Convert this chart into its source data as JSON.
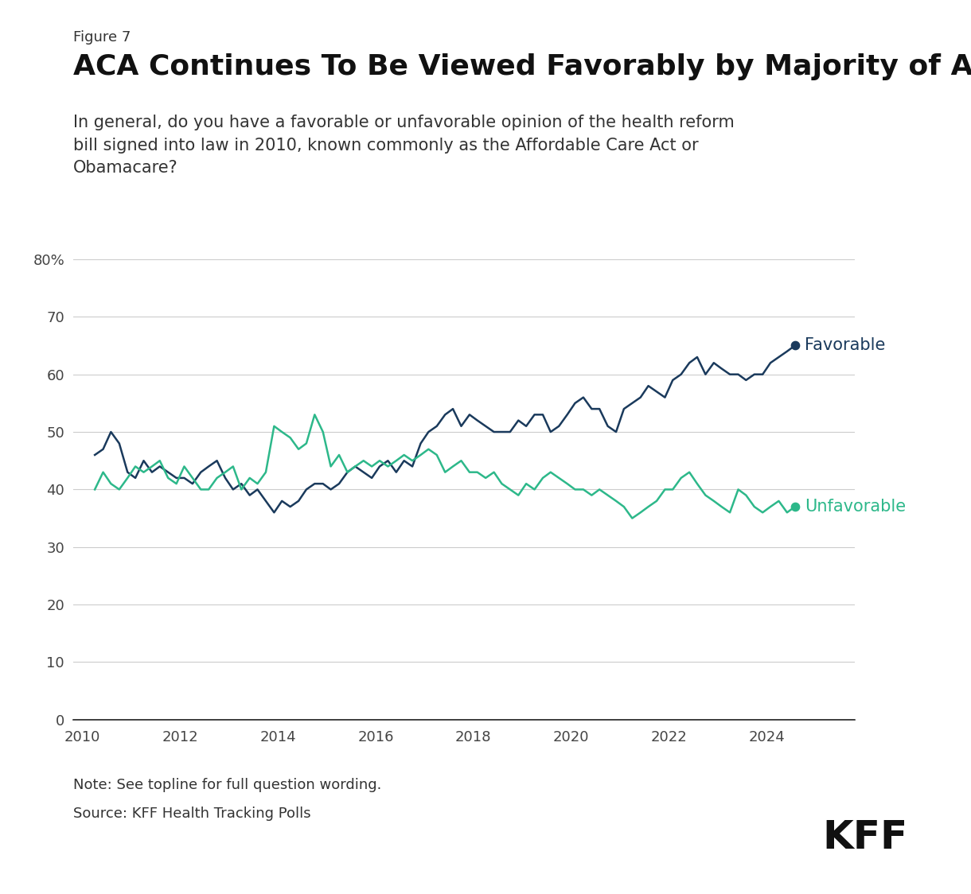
{
  "figure_label": "Figure 7",
  "title": "ACA Continues To Be Viewed Favorably by Majority of Adults",
  "subtitle": "In general, do you have a favorable or unfavorable opinion of the health reform\nbill signed into law in 2010, known commonly as the Affordable Care Act or\nObamacare?",
  "note": "Note: See topline for full question wording.",
  "source": "Source: KFF Health Tracking Polls",
  "favorable_color": "#1a3a5c",
  "unfavorable_color": "#2db88a",
  "background_color": "#ffffff",
  "ylim": [
    0,
    80
  ],
  "yticks": [
    0,
    10,
    20,
    30,
    40,
    50,
    60,
    70,
    80
  ],
  "ytick_labels": [
    "0",
    "10",
    "20",
    "30",
    "40",
    "50",
    "60",
    "70",
    "80%"
  ],
  "xlim_min": 2009.8,
  "xlim_max": 2025.8,
  "xticks": [
    2010,
    2012,
    2014,
    2016,
    2018,
    2020,
    2022,
    2024
  ],
  "favorable_data": [
    [
      2010.25,
      46
    ],
    [
      2010.42,
      47
    ],
    [
      2010.58,
      50
    ],
    [
      2010.75,
      48
    ],
    [
      2010.92,
      43
    ],
    [
      2011.08,
      42
    ],
    [
      2011.25,
      45
    ],
    [
      2011.42,
      43
    ],
    [
      2011.58,
      44
    ],
    [
      2011.75,
      43
    ],
    [
      2011.92,
      42
    ],
    [
      2012.08,
      42
    ],
    [
      2012.25,
      41
    ],
    [
      2012.42,
      43
    ],
    [
      2012.58,
      44
    ],
    [
      2012.75,
      45
    ],
    [
      2012.92,
      42
    ],
    [
      2013.08,
      40
    ],
    [
      2013.25,
      41
    ],
    [
      2013.42,
      39
    ],
    [
      2013.58,
      40
    ],
    [
      2013.75,
      38
    ],
    [
      2013.92,
      36
    ],
    [
      2014.08,
      38
    ],
    [
      2014.25,
      37
    ],
    [
      2014.42,
      38
    ],
    [
      2014.58,
      40
    ],
    [
      2014.75,
      41
    ],
    [
      2014.92,
      41
    ],
    [
      2015.08,
      40
    ],
    [
      2015.25,
      41
    ],
    [
      2015.42,
      43
    ],
    [
      2015.58,
      44
    ],
    [
      2015.75,
      43
    ],
    [
      2015.92,
      42
    ],
    [
      2016.08,
      44
    ],
    [
      2016.25,
      45
    ],
    [
      2016.42,
      43
    ],
    [
      2016.58,
      45
    ],
    [
      2016.75,
      44
    ],
    [
      2016.92,
      48
    ],
    [
      2017.08,
      50
    ],
    [
      2017.25,
      51
    ],
    [
      2017.42,
      53
    ],
    [
      2017.58,
      54
    ],
    [
      2017.75,
      51
    ],
    [
      2017.92,
      53
    ],
    [
      2018.08,
      52
    ],
    [
      2018.25,
      51
    ],
    [
      2018.42,
      50
    ],
    [
      2018.58,
      50
    ],
    [
      2018.75,
      50
    ],
    [
      2018.92,
      52
    ],
    [
      2019.08,
      51
    ],
    [
      2019.25,
      53
    ],
    [
      2019.42,
      53
    ],
    [
      2019.58,
      50
    ],
    [
      2019.75,
      51
    ],
    [
      2019.92,
      53
    ],
    [
      2020.08,
      55
    ],
    [
      2020.25,
      56
    ],
    [
      2020.42,
      54
    ],
    [
      2020.58,
      54
    ],
    [
      2020.75,
      51
    ],
    [
      2020.92,
      50
    ],
    [
      2021.08,
      54
    ],
    [
      2021.25,
      55
    ],
    [
      2021.42,
      56
    ],
    [
      2021.58,
      58
    ],
    [
      2021.75,
      57
    ],
    [
      2021.92,
      56
    ],
    [
      2022.08,
      59
    ],
    [
      2022.25,
      60
    ],
    [
      2022.42,
      62
    ],
    [
      2022.58,
      63
    ],
    [
      2022.75,
      60
    ],
    [
      2022.92,
      62
    ],
    [
      2023.08,
      61
    ],
    [
      2023.25,
      60
    ],
    [
      2023.42,
      60
    ],
    [
      2023.58,
      59
    ],
    [
      2023.75,
      60
    ],
    [
      2023.92,
      60
    ],
    [
      2024.08,
      62
    ],
    [
      2024.25,
      63
    ],
    [
      2024.42,
      64
    ],
    [
      2024.58,
      65
    ]
  ],
  "unfavorable_data": [
    [
      2010.25,
      40
    ],
    [
      2010.42,
      43
    ],
    [
      2010.58,
      41
    ],
    [
      2010.75,
      40
    ],
    [
      2010.92,
      42
    ],
    [
      2011.08,
      44
    ],
    [
      2011.25,
      43
    ],
    [
      2011.42,
      44
    ],
    [
      2011.58,
      45
    ],
    [
      2011.75,
      42
    ],
    [
      2011.92,
      41
    ],
    [
      2012.08,
      44
    ],
    [
      2012.25,
      42
    ],
    [
      2012.42,
      40
    ],
    [
      2012.58,
      40
    ],
    [
      2012.75,
      42
    ],
    [
      2012.92,
      43
    ],
    [
      2013.08,
      44
    ],
    [
      2013.25,
      40
    ],
    [
      2013.42,
      42
    ],
    [
      2013.58,
      41
    ],
    [
      2013.75,
      43
    ],
    [
      2013.92,
      51
    ],
    [
      2014.08,
      50
    ],
    [
      2014.25,
      49
    ],
    [
      2014.42,
      47
    ],
    [
      2014.58,
      48
    ],
    [
      2014.75,
      53
    ],
    [
      2014.92,
      50
    ],
    [
      2015.08,
      44
    ],
    [
      2015.25,
      46
    ],
    [
      2015.42,
      43
    ],
    [
      2015.58,
      44
    ],
    [
      2015.75,
      45
    ],
    [
      2015.92,
      44
    ],
    [
      2016.08,
      45
    ],
    [
      2016.25,
      44
    ],
    [
      2016.42,
      45
    ],
    [
      2016.58,
      46
    ],
    [
      2016.75,
      45
    ],
    [
      2016.92,
      46
    ],
    [
      2017.08,
      47
    ],
    [
      2017.25,
      46
    ],
    [
      2017.42,
      43
    ],
    [
      2017.58,
      44
    ],
    [
      2017.75,
      45
    ],
    [
      2017.92,
      43
    ],
    [
      2018.08,
      43
    ],
    [
      2018.25,
      42
    ],
    [
      2018.42,
      43
    ],
    [
      2018.58,
      41
    ],
    [
      2018.75,
      40
    ],
    [
      2018.92,
      39
    ],
    [
      2019.08,
      41
    ],
    [
      2019.25,
      40
    ],
    [
      2019.42,
      42
    ],
    [
      2019.58,
      43
    ],
    [
      2019.75,
      42
    ],
    [
      2019.92,
      41
    ],
    [
      2020.08,
      40
    ],
    [
      2020.25,
      40
    ],
    [
      2020.42,
      39
    ],
    [
      2020.58,
      40
    ],
    [
      2020.75,
      39
    ],
    [
      2020.92,
      38
    ],
    [
      2021.08,
      37
    ],
    [
      2021.25,
      35
    ],
    [
      2021.42,
      36
    ],
    [
      2021.58,
      37
    ],
    [
      2021.75,
      38
    ],
    [
      2021.92,
      40
    ],
    [
      2022.08,
      40
    ],
    [
      2022.25,
      42
    ],
    [
      2022.42,
      43
    ],
    [
      2022.58,
      41
    ],
    [
      2022.75,
      39
    ],
    [
      2022.92,
      38
    ],
    [
      2023.08,
      37
    ],
    [
      2023.25,
      36
    ],
    [
      2023.42,
      40
    ],
    [
      2023.58,
      39
    ],
    [
      2023.75,
      37
    ],
    [
      2023.92,
      36
    ],
    [
      2024.08,
      37
    ],
    [
      2024.25,
      38
    ],
    [
      2024.42,
      36
    ],
    [
      2024.58,
      37
    ]
  ],
  "label_favorable": "Favorable",
  "label_unfavorable": "Unfavorable",
  "label_fontsize": 15,
  "title_fontsize": 26,
  "subtitle_fontsize": 15,
  "tick_fontsize": 13,
  "fig_label_fontsize": 13,
  "note_fontsize": 13,
  "kff_fontsize": 36
}
